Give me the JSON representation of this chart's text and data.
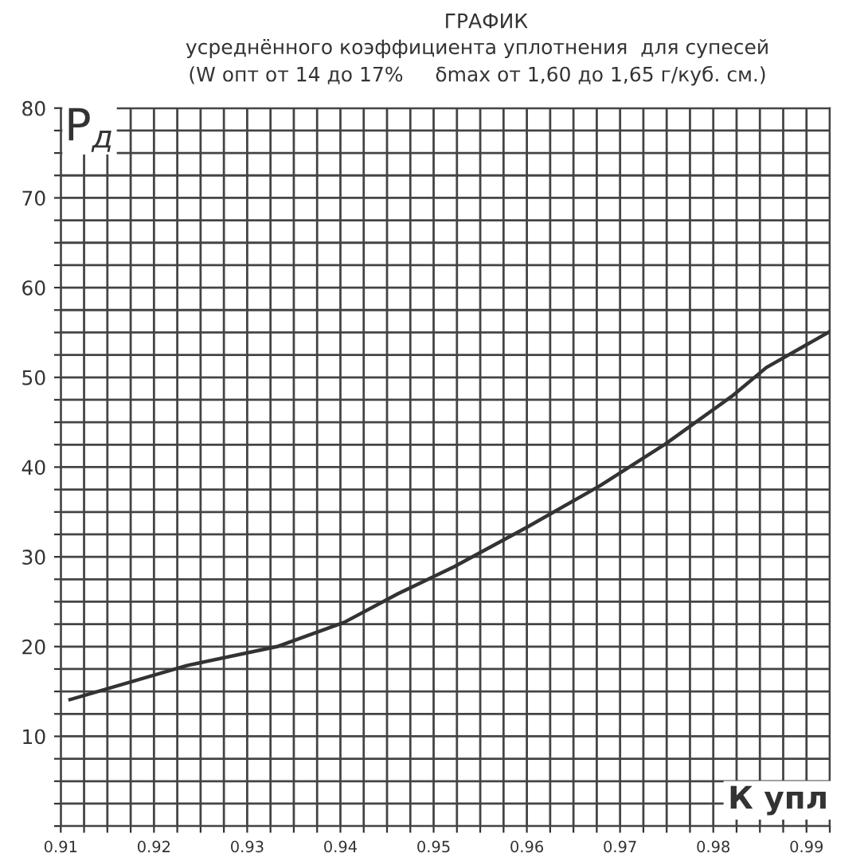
{
  "chart_data": {
    "type": "line",
    "title": "ГРАФИК",
    "subtitle": "усреднённого коэффициента уплотнения  для супесей\n(W опт от 14 до 17%     δmax от 1,60 до 1,65 г/куб. см.)",
    "xlabel": "К упл",
    "ylabel": "P$_{д}$",
    "x": [
      0.911,
      0.9236,
      0.9332,
      0.9404,
      0.9462,
      0.9522,
      0.96,
      0.9678,
      0.9749,
      0.982,
      0.9857,
      0.9925
    ],
    "series": [
      {
        "color": "#333333",
        "values": [
          14.1,
          17.9,
          20.0,
          22.7,
          25.9,
          28.9,
          33.3,
          37.9,
          42.6,
          47.9,
          51.1,
          55.1
        ]
      }
    ],
    "xlim": [
      0.91,
      0.9925
    ],
    "ylim": [
      0,
      80
    ],
    "xticks": [
      0.91,
      {
        "value": 0.9125,
        "label": null
      },
      {
        "value": 0.915,
        "label": null
      },
      {
        "value": 0.9175,
        "label": null
      },
      0.92,
      {
        "value": 0.9225,
        "label": null
      },
      {
        "value": 0.925,
        "label": null
      },
      {
        "value": 0.9275,
        "label": null
      },
      0.93,
      {
        "value": 0.9325,
        "label": null
      },
      {
        "value": 0.935,
        "label": null
      },
      {
        "value": 0.9375,
        "label": null
      },
      0.94,
      {
        "value": 0.9425,
        "label": null
      },
      {
        "value": 0.945,
        "label": null
      },
      {
        "value": 0.9475,
        "label": null
      },
      0.95,
      {
        "value": 0.9525,
        "label": null
      },
      {
        "value": 0.955,
        "label": null
      },
      {
        "value": 0.9575,
        "label": null
      },
      0.96,
      {
        "value": 0.9625,
        "label": null
      },
      {
        "value": 0.965,
        "label": null
      },
      {
        "value": 0.9675,
        "label": null
      },
      0.97,
      {
        "value": 0.9725,
        "label": null
      },
      {
        "value": 0.975,
        "label": null
      },
      {
        "value": 0.9775,
        "label": null
      },
      0.98,
      {
        "value": 0.9825,
        "label": null
      },
      {
        "value": 0.985,
        "label": null
      },
      {
        "value": 0.9875,
        "label": null
      },
      0.99,
      {
        "value": 0.9925,
        "label": null
      }
    ],
    "yticks": [
      {
        "value": 0,
        "label": null
      },
      {
        "value": 2.5,
        "label": null
      },
      {
        "value": 5,
        "label": null
      },
      {
        "value": 7.5,
        "label": null
      },
      10,
      {
        "value": 12.5,
        "label": null
      },
      {
        "value": 15,
        "label": null
      },
      {
        "value": 17.5,
        "label": null
      },
      20,
      {
        "value": 22.5,
        "label": null
      },
      {
        "value": 25,
        "label": null
      },
      {
        "value": 27.5,
        "label": null
      },
      30,
      {
        "value": 32.5,
        "label": null
      },
      {
        "value": 35,
        "label": null
      },
      {
        "value": 37.5,
        "label": null
      },
      40,
      {
        "value": 42.5,
        "label": null
      },
      {
        "value": 45,
        "label": null
      },
      {
        "value": 47.5,
        "label": null
      },
      50,
      {
        "value": 52.5,
        "label": null
      },
      {
        "value": 55,
        "label": null
      },
      {
        "value": 57.5,
        "label": null
      },
      60,
      {
        "value": 62.5,
        "label": null
      },
      {
        "value": 65,
        "label": null
      },
      {
        "value": 67.5,
        "label": null
      },
      70,
      {
        "value": 72.5,
        "label": null
      },
      {
        "value": 75,
        "label": null
      },
      {
        "value": 77.5,
        "label": null
      },
      80
    ],
    "grid": true,
    "marker": "none",
    "line_style": "solid"
  }
}
